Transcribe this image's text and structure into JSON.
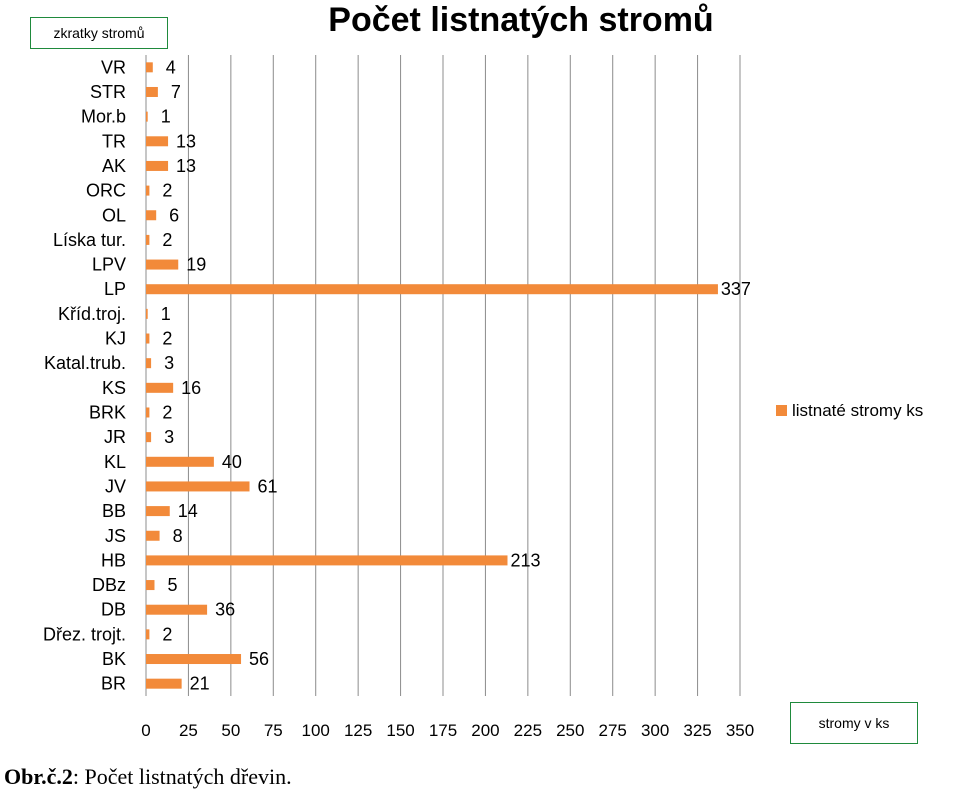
{
  "chart_data": {
    "type": "bar",
    "orientation": "horizontal",
    "title": "Počet listnatých stromů",
    "categories": [
      "VR",
      "STR",
      "Mor.b",
      "TR",
      "AK",
      "ORC",
      "OL",
      "Líska tur.",
      "LPV",
      "LP",
      "Kříd.troj.",
      "KJ",
      "Katal.trub.",
      "KS",
      "BRK",
      "JR",
      "KL",
      "JV",
      "BB",
      "JS",
      "HB",
      "DBz",
      "DB",
      "Dřez. trojt.",
      "BK",
      "BR"
    ],
    "series": [
      {
        "name": "listnaté stromy ks",
        "color": "#f28a3a",
        "values": [
          4,
          7,
          1,
          13,
          13,
          2,
          6,
          2,
          19,
          337,
          1,
          2,
          3,
          16,
          2,
          3,
          40,
          61,
          14,
          8,
          213,
          5,
          36,
          2,
          56,
          21
        ]
      }
    ],
    "xlim": [
      0,
      350
    ],
    "x_ticks": [
      0,
      25,
      50,
      75,
      100,
      125,
      150,
      175,
      200,
      225,
      250,
      275,
      300,
      325,
      350
    ],
    "grid": true,
    "legend_position": "right"
  },
  "series_axis_label": "zkratky stromů",
  "value_axis_label": "stromy v ks",
  "caption": {
    "prefix": "Obr.č.2",
    "text": ": Počet listnatých dřevin."
  }
}
